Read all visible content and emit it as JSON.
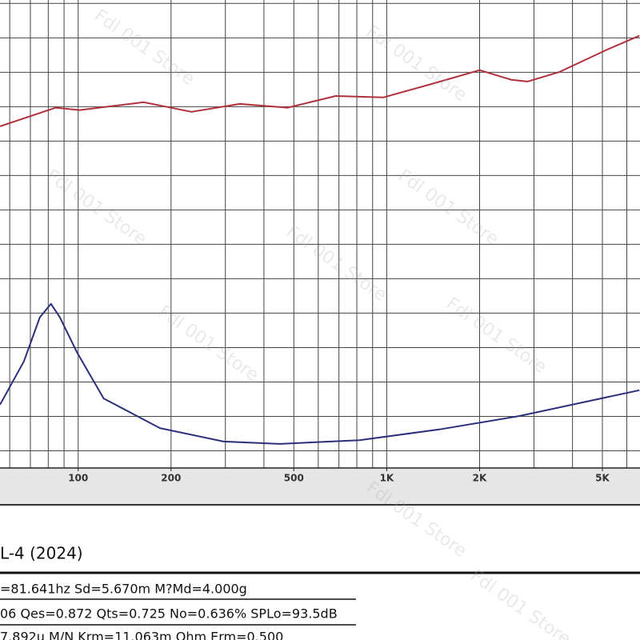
{
  "chart_data": {
    "type": "line",
    "log_x": true,
    "xlim": [
      55.8,
      6620
    ],
    "ylim": [
      -0.5,
      13.1
    ],
    "xticks": [
      100,
      200,
      500,
      {
        "value": 1000,
        "label": "1K"
      },
      {
        "value": 2000,
        "label": "2K"
      },
      {
        "value": 5000,
        "label": "5K"
      }
    ],
    "xgrid": [
      60,
      70,
      80,
      90,
      100,
      200,
      300,
      400,
      500,
      600,
      700,
      800,
      900,
      1000,
      2000,
      3000,
      4000,
      5000,
      6000
    ],
    "ygrid": [
      0,
      1,
      2,
      3,
      4,
      5,
      6,
      7,
      8,
      9,
      10,
      11,
      12,
      13
    ],
    "series": [
      {
        "color": "#b0303a",
        "x": [
          55.8,
          84.6,
          101,
          163,
          233,
          334,
          477,
          683,
          977,
          1397,
          2000,
          2540,
          2860,
          3630,
          5190,
          6590
        ],
        "values": [
          9.43,
          9.97,
          9.9,
          10.13,
          9.85,
          10.08,
          9.97,
          10.31,
          10.27,
          10.66,
          11.06,
          10.78,
          10.73,
          11.01,
          11.66,
          12.06
        ]
      },
      {
        "color": "#2b2f7a",
        "x": [
          55.8,
          66.7,
          75.1,
          81.6,
          87.2,
          99,
          121,
          184,
          296,
          450,
          816,
          1480,
          2690,
          6590
        ],
        "values": [
          1.34,
          2.6,
          3.88,
          4.27,
          3.88,
          2.87,
          1.52,
          0.66,
          0.27,
          0.2,
          0.31,
          0.62,
          1.01,
          1.76
        ]
      }
    ]
  },
  "info": {
    "model": "L-4 (2024)",
    "lines": [
      "=81.641hz Sd=5.670m M?Md=4.000g",
      "06 Qes=0.872 Qts=0.725 No=0.636% SPLo=93.5dB",
      "7.892u M/N Krm=11.063m Ohm Erm=0.500"
    ]
  },
  "watermark": "Fdl 001 Store"
}
